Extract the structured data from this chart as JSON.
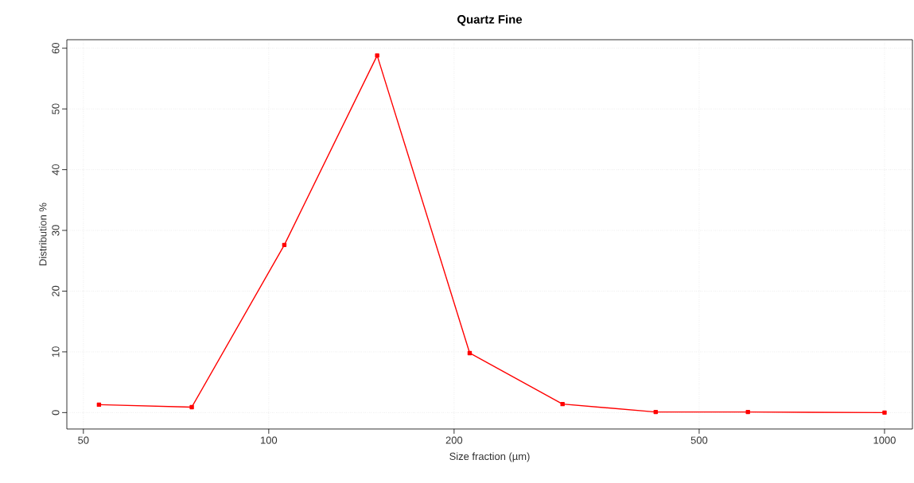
{
  "chart_data": {
    "type": "line",
    "title": "Quartz Fine",
    "xlabel": "Size fraction (µm)",
    "ylabel": "Distribution %",
    "x": [
      53,
      75,
      106,
      150,
      212,
      300,
      425,
      600,
      1000
    ],
    "values": [
      1.3,
      0.9,
      27.6,
      58.8,
      9.8,
      1.4,
      0.1,
      0.1,
      0.0
    ],
    "color": "#ff0000",
    "marker": "square",
    "line_style": "solid",
    "log": "x",
    "xlim": [
      47,
      1110
    ],
    "ylim": [
      -2.7,
      61.4
    ],
    "xticks": [
      50,
      100,
      200,
      500,
      1000
    ],
    "yticks": [
      0,
      10,
      20,
      30,
      40,
      50,
      60
    ],
    "grid": true
  }
}
